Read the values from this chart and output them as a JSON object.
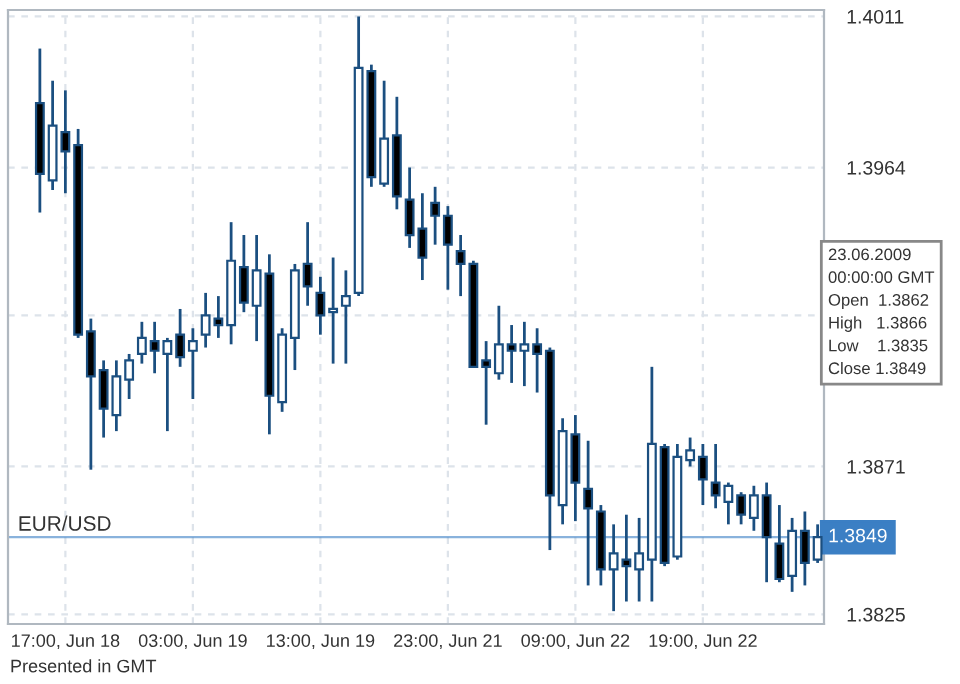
{
  "chart_data": {
    "type": "candlestick",
    "categories": [
      null,
      null,
      "17:00, Jun 18",
      null,
      null,
      null,
      null,
      null,
      null,
      null,
      null,
      null,
      "03:00, Jun 19",
      null,
      null,
      null,
      null,
      null,
      null,
      null,
      null,
      null,
      "13:00, Jun 19",
      null,
      null,
      null,
      null,
      null,
      null,
      null,
      null,
      null,
      "23:00, Jun 21",
      null,
      null,
      null,
      null,
      null,
      null,
      null,
      null,
      null,
      "09:00, Jun 22",
      null,
      null,
      null,
      null,
      null,
      null,
      null,
      null,
      null,
      "19:00, Jun 22",
      null,
      null,
      null,
      null,
      null,
      null,
      null,
      null,
      null
    ],
    "ohlc": [
      [
        1.3984,
        1.4001,
        1.395,
        1.3962
      ],
      [
        1.396,
        1.3991,
        1.3957,
        1.3977
      ],
      [
        1.3975,
        1.3988,
        1.3956,
        1.3969
      ],
      [
        1.3971,
        1.3976,
        1.3911,
        1.3912
      ],
      [
        1.3913,
        1.3917,
        1.387,
        1.3899
      ],
      [
        1.3901,
        1.3904,
        1.388,
        1.3889
      ],
      [
        1.3887,
        1.3904,
        1.3882,
        1.3899
      ],
      [
        1.3898,
        1.3906,
        1.3892,
        1.3904
      ],
      [
        1.3906,
        1.3916,
        1.3903,
        1.3911
      ],
      [
        1.391,
        1.3916,
        1.39,
        1.3907
      ],
      [
        1.3906,
        1.3911,
        1.3882,
        1.391
      ],
      [
        1.3912,
        1.392,
        1.3902,
        1.3905
      ],
      [
        1.3907,
        1.3914,
        1.3892,
        1.391
      ],
      [
        1.3912,
        1.3925,
        1.3908,
        1.3918
      ],
      [
        1.3917,
        1.3924,
        1.3911,
        1.3915
      ],
      [
        1.3915,
        1.3947,
        1.3909,
        1.3935
      ],
      [
        1.3933,
        1.3943,
        1.3919,
        1.3922
      ],
      [
        1.3921,
        1.3943,
        1.391,
        1.3932
      ],
      [
        1.3931,
        1.3937,
        1.3881,
        1.3893
      ],
      [
        1.3891,
        1.3914,
        1.3888,
        1.3912
      ],
      [
        1.3911,
        1.3934,
        1.3901,
        1.3932
      ],
      [
        1.3934,
        1.3947,
        1.3921,
        1.3927
      ],
      [
        1.3925,
        1.393,
        1.3912,
        1.3918
      ],
      [
        1.3919,
        1.3936,
        1.3903,
        1.392
      ],
      [
        1.3921,
        1.3932,
        1.3903,
        1.3924
      ],
      [
        1.3925,
        1.4011,
        1.3924,
        1.3995
      ],
      [
        1.3994,
        1.3996,
        1.3958,
        1.3961
      ],
      [
        1.3959,
        1.3991,
        1.3958,
        1.3973
      ],
      [
        1.3974,
        1.3986,
        1.3951,
        1.3955
      ],
      [
        1.3954,
        1.3964,
        1.3939,
        1.3943
      ],
      [
        1.3945,
        1.3956,
        1.3929,
        1.3936
      ],
      [
        1.3953,
        1.3958,
        1.394,
        1.3949
      ],
      [
        1.3949,
        1.3952,
        1.3926,
        1.394
      ],
      [
        1.3938,
        1.3943,
        1.3924,
        1.3934
      ],
      [
        1.3934,
        1.3935,
        1.3902,
        1.3902
      ],
      [
        1.3904,
        1.391,
        1.3884,
        1.3902
      ],
      [
        1.39,
        1.3921,
        1.3898,
        1.3909
      ],
      [
        1.3909,
        1.3915,
        1.3897,
        1.3907
      ],
      [
        1.3907,
        1.3916,
        1.3896,
        1.3909
      ],
      [
        1.3909,
        1.3914,
        1.3894,
        1.3906
      ],
      [
        1.3907,
        1.3908,
        1.3845,
        1.3862
      ],
      [
        1.3859,
        1.3886,
        1.3853,
        1.3882
      ],
      [
        1.3881,
        1.3887,
        1.3854,
        1.3866
      ],
      [
        1.3864,
        1.3879,
        1.3834,
        1.3858
      ],
      [
        1.3857,
        1.3859,
        1.3834,
        1.3839
      ],
      [
        1.3839,
        1.3853,
        1.3826,
        1.3844
      ],
      [
        1.3842,
        1.3856,
        1.3829,
        1.384
      ],
      [
        1.3839,
        1.3855,
        1.3829,
        1.3844
      ],
      [
        1.3842,
        1.3902,
        1.3829,
        1.3878
      ],
      [
        1.3877,
        1.3878,
        1.384,
        1.3841
      ],
      [
        1.3843,
        1.3878,
        1.3842,
        1.3874
      ],
      [
        1.3873,
        1.388,
        1.3871,
        1.3876
      ],
      [
        1.3874,
        1.3878,
        1.3859,
        1.3867
      ],
      [
        1.3866,
        1.3878,
        1.3858,
        1.3862
      ],
      [
        1.386,
        1.3866,
        1.3853,
        1.3865
      ],
      [
        1.3862,
        1.3863,
        1.3853,
        1.3856
      ],
      [
        1.3855,
        1.3865,
        1.3851,
        1.3862
      ],
      [
        1.3862,
        1.3866,
        1.3835,
        1.3849
      ],
      [
        1.3847,
        1.3859,
        1.3835,
        1.3836
      ],
      [
        1.3837,
        1.3855,
        1.3832,
        1.3851
      ],
      [
        1.3851,
        1.3857,
        1.3834,
        1.3841
      ],
      [
        1.3842,
        1.3853,
        1.3841,
        1.3849
      ]
    ],
    "color": "#1b4f80",
    "ylim": [
      1.3822,
      1.4013
    ],
    "yticks": [
      1.4011,
      1.3964,
      {
        "value": 1.3918,
        "label": null
      },
      1.3871,
      1.3825
    ],
    "grid": true,
    "ref_lines": [
      {
        "axis": "y",
        "value": 1.3849,
        "label": "1.3849",
        "color": "#3b7fc4"
      }
    ],
    "annotations": [
      "EUR/USD",
      "Presented in GMT",
      "23.06.2009\n00:00:00 GMT\nOpen  1.3862\nHigh   1.3866\nLow    1.3835\nClose 1.3849"
    ]
  }
}
